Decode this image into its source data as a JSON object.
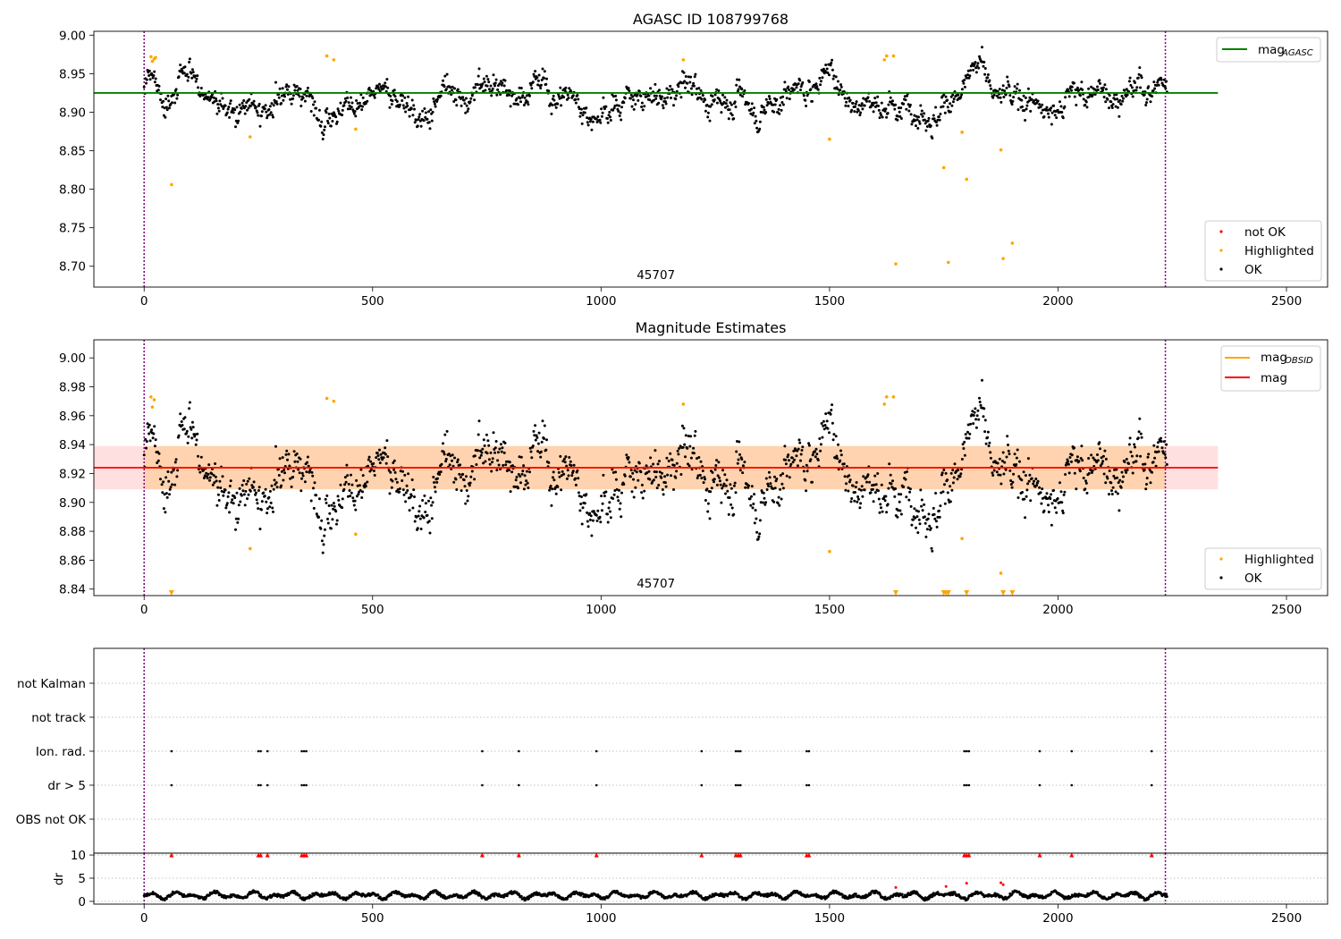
{
  "chart_data": [
    {
      "type": "scatter",
      "title": "AGASC ID 108799768",
      "xlim": [
        -110,
        2590
      ],
      "ylim": [
        8.673,
        9.005
      ],
      "x_ticks": [
        0,
        500,
        1000,
        1500,
        2000,
        2500
      ],
      "x_tick_labels": [
        "0",
        "500",
        "1000",
        "1500",
        "2000",
        "2500"
      ],
      "y_ticks": [
        8.7,
        8.75,
        8.8,
        8.85,
        8.9,
        8.95,
        9.0
      ],
      "y_tick_labels": [
        "8.70",
        "8.75",
        "8.80",
        "8.85",
        "8.90",
        "8.95",
        "9.00"
      ],
      "vlines": [
        0,
        2235
      ],
      "obsid_annotation": {
        "x": 1120,
        "text": "45707"
      },
      "mag_agasc": 8.925,
      "line_x_range": [
        -110,
        2350
      ],
      "legend_lines": [
        {
          "label": "mag",
          "sub": "AGASC",
          "color": "#008000"
        }
      ],
      "legend_points": [
        {
          "label": "not OK",
          "color": "#ff0000"
        },
        {
          "label": "Highlighted",
          "color": "#ffa500"
        },
        {
          "label": "OK",
          "color": "#000000"
        }
      ],
      "highlighted_points": [
        [
          15,
          8.972
        ],
        [
          18,
          8.966
        ],
        [
          22,
          8.969
        ],
        [
          25,
          8.971
        ],
        [
          60,
          8.806
        ],
        [
          232,
          8.868
        ],
        [
          400,
          8.973
        ],
        [
          415,
          8.968
        ],
        [
          463,
          8.878
        ],
        [
          1180,
          8.968
        ],
        [
          1500,
          8.865
        ],
        [
          1620,
          8.968
        ],
        [
          1625,
          8.973
        ],
        [
          1640,
          8.973
        ],
        [
          1645,
          8.703
        ],
        [
          1750,
          8.828
        ],
        [
          1760,
          8.705
        ],
        [
          1790,
          8.874
        ],
        [
          1800,
          8.813
        ],
        [
          1875,
          8.851
        ],
        [
          1880,
          8.71
        ],
        [
          1900,
          8.73
        ]
      ],
      "not_ok_points": []
    },
    {
      "type": "scatter",
      "title": "Magnitude Estimates",
      "xlim": [
        -110,
        2590
      ],
      "ylim": [
        8.8355,
        9.0125
      ],
      "x_ticks": [
        0,
        500,
        1000,
        1500,
        2000,
        2500
      ],
      "x_tick_labels": [
        "0",
        "500",
        "1000",
        "1500",
        "2000",
        "2500"
      ],
      "y_ticks": [
        8.84,
        8.86,
        8.88,
        8.9,
        8.92,
        8.94,
        8.96,
        8.98,
        9.0
      ],
      "y_tick_labels": [
        "8.84",
        "8.86",
        "8.88",
        "8.90",
        "8.92",
        "8.94",
        "8.96",
        "8.98",
        "9.00"
      ],
      "vlines": [
        0,
        2235
      ],
      "obsid_annotation": {
        "x": 1120,
        "text": "45707"
      },
      "mag": 8.924,
      "mag_band": [
        8.909,
        8.939
      ],
      "line_x_range": [
        -110,
        2350
      ],
      "obs_band_x_range": [
        0,
        2235
      ],
      "legend_lines": [
        {
          "label": "mag",
          "sub": "OBSID",
          "color": "#ffa500"
        },
        {
          "label": "mag",
          "sub": "",
          "color": "#ff0000"
        }
      ],
      "legend_points": [
        {
          "label": "Highlighted",
          "color": "#ffa500"
        },
        {
          "label": "OK",
          "color": "#000000"
        }
      ],
      "highlighted_points": [
        [
          15,
          8.973
        ],
        [
          18,
          8.966
        ],
        [
          22,
          8.971
        ],
        [
          232,
          8.868
        ],
        [
          400,
          8.972
        ],
        [
          415,
          8.97
        ],
        [
          463,
          8.878
        ],
        [
          1180,
          8.968
        ],
        [
          1500,
          8.866
        ],
        [
          1620,
          8.968
        ],
        [
          1625,
          8.973
        ],
        [
          1640,
          8.973
        ],
        [
          1790,
          8.875
        ],
        [
          1875,
          8.851
        ]
      ],
      "below_limit_markers": [
        60,
        1645,
        1750,
        1755,
        1760,
        1800,
        1880,
        1900
      ]
    },
    {
      "type": "scatter",
      "title": "",
      "xlim": [
        -110,
        2590
      ],
      "categories": [
        "not Kalman",
        "not track",
        "Ion. rad.",
        "dr > 5",
        "OBS not OK"
      ],
      "vlines": [
        0,
        2235
      ],
      "flag_x": [
        60,
        250,
        255,
        270,
        345,
        350,
        355,
        740,
        820,
        990,
        1220,
        1295,
        1300,
        1305,
        1450,
        1455,
        1795,
        1800,
        1805,
        1960,
        2030,
        2205
      ],
      "flags": {
        "not Kalman": false,
        "not track": false,
        "Ion. rad.": true,
        "dr > 5": true,
        "OBS not OK": false
      }
    },
    {
      "type": "scatter",
      "title": "",
      "ylabel": "dr",
      "xlim": [
        -110,
        2590
      ],
      "ylim": [
        -0.6,
        10.4
      ],
      "x_ticks": [
        0,
        500,
        1000,
        1500,
        2000,
        2500
      ],
      "x_tick_labels": [
        "0",
        "500",
        "1000",
        "1500",
        "2000",
        "2500"
      ],
      "y_ticks": [
        0,
        5,
        10
      ],
      "y_tick_labels": [
        "0",
        "5",
        "10"
      ],
      "vlines": [
        0,
        2235
      ],
      "capped_value": 10,
      "capped_x": [
        60,
        250,
        255,
        270,
        345,
        350,
        355,
        740,
        820,
        990,
        1220,
        1295,
        1300,
        1305,
        1450,
        1455,
        1795,
        1800,
        1805,
        1960,
        2030,
        2205
      ],
      "red_points": [
        [
          1645,
          3.0
        ],
        [
          1755,
          3.2
        ],
        [
          1800,
          3.9
        ],
        [
          1875,
          4.0
        ],
        [
          1880,
          3.6
        ]
      ]
    }
  ]
}
